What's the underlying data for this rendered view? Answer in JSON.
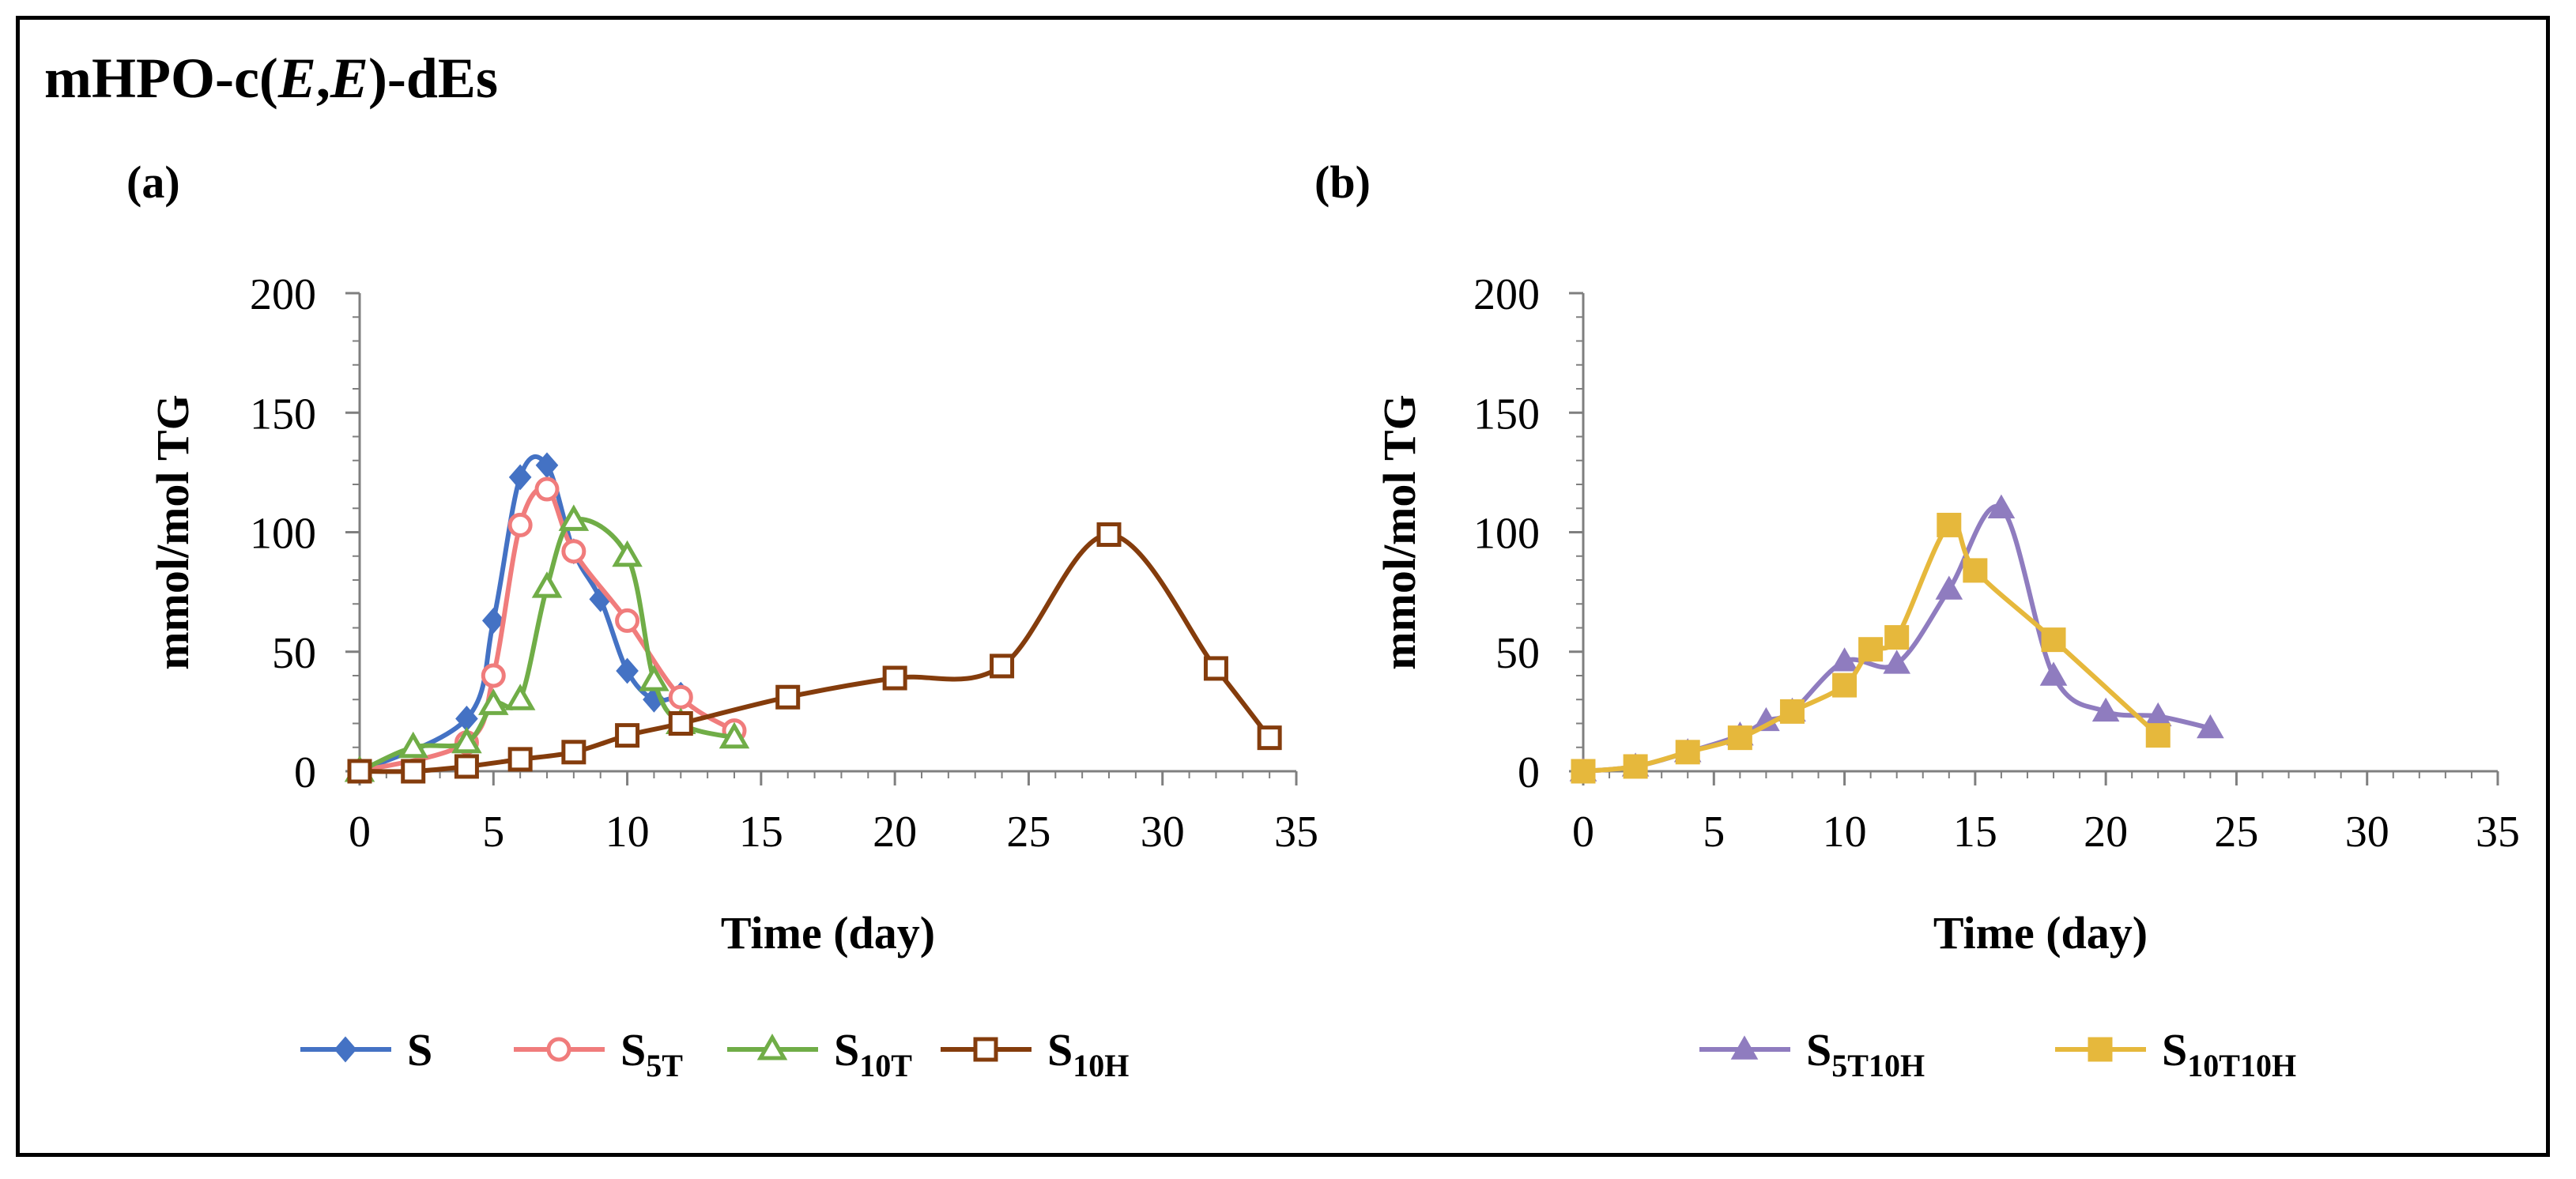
{
  "figure": {
    "title_parts": [
      "mHPO-c(",
      "E",
      ",",
      "E",
      ")-dEs"
    ],
    "colors": {
      "frame": "#000000",
      "axis": "#7f7f7f",
      "text": "#000000"
    }
  },
  "chart_data": [
    {
      "type": "line",
      "panel_label": "(a)",
      "title": "",
      "xlabel": "Time (day)",
      "ylabel": "mmol/mol TG",
      "xlim": [
        0,
        35
      ],
      "ylim": [
        0,
        200
      ],
      "xticks": [
        "0",
        "5",
        "10",
        "15",
        "20",
        "25",
        "30",
        "35"
      ],
      "yticks": [
        "0",
        "50",
        "100",
        "150",
        "200"
      ],
      "grid": false,
      "legend": "bottom",
      "series": [
        {
          "name": "S",
          "name_sub": "",
          "color": "#4472c4",
          "marker": "diamond-filled",
          "x": [
            0,
            4,
            5,
            6,
            7,
            8,
            9,
            10,
            11,
            12
          ],
          "y": [
            0,
            22,
            63,
            123,
            128,
            92,
            72,
            42,
            30,
            32
          ]
        },
        {
          "name": "S",
          "name_sub": "5T",
          "color": "#f07c7c",
          "marker": "circle-open",
          "x": [
            0,
            4,
            5,
            6,
            7,
            8,
            10,
            12,
            14
          ],
          "y": [
            0,
            12,
            40,
            103,
            118,
            92,
            63,
            31,
            17
          ]
        },
        {
          "name": "S",
          "name_sub": "10T",
          "color": "#70ad47",
          "marker": "triangle-open",
          "x": [
            0,
            2,
            4,
            5,
            6,
            7,
            8,
            10,
            11,
            12,
            14
          ],
          "y": [
            0,
            10,
            12,
            28,
            30,
            77,
            105,
            90,
            38,
            20,
            14
          ]
        },
        {
          "name": "S",
          "name_sub": "10H",
          "color": "#843c0c",
          "marker": "square-open",
          "x": [
            0,
            2,
            4,
            6,
            8,
            10,
            12,
            16,
            20,
            24,
            28,
            32,
            34
          ],
          "y": [
            0,
            0,
            2,
            5,
            8,
            15,
            20,
            31,
            39,
            44,
            99,
            43,
            14
          ]
        }
      ]
    },
    {
      "type": "line",
      "panel_label": "(b)",
      "title": "",
      "xlabel": "Time (day)",
      "ylabel": "mmol/mol TG",
      "xlim": [
        0,
        35
      ],
      "ylim": [
        0,
        200
      ],
      "xticks": [
        "0",
        "5",
        "10",
        "15",
        "20",
        "25",
        "30",
        "35"
      ],
      "yticks": [
        "0",
        "50",
        "100",
        "150",
        "200"
      ],
      "grid": false,
      "legend": "bottom",
      "series": [
        {
          "name": "S",
          "name_sub": "5T10H",
          "color": "#8f7cbf",
          "marker": "triangle-filled",
          "x": [
            0,
            2,
            4,
            6,
            7,
            8,
            10,
            12,
            14,
            16,
            18,
            20,
            22,
            24
          ],
          "y": [
            0,
            2,
            8,
            15,
            21,
            25,
            46,
            45,
            76,
            110,
            40,
            25,
            23,
            18
          ]
        },
        {
          "name": "S",
          "name_sub": "10T10H",
          "color": "#e6b83c",
          "marker": "square-filled",
          "x": [
            0,
            2,
            4,
            6,
            8,
            10,
            11,
            12,
            14,
            15,
            18,
            22
          ],
          "y": [
            0,
            2,
            8,
            14,
            25,
            36,
            51,
            56,
            103,
            84,
            55,
            15
          ]
        }
      ]
    }
  ]
}
